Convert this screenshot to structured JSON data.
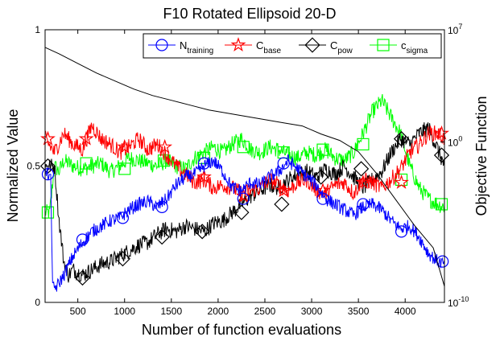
{
  "chart_data": {
    "type": "line",
    "title": "F10 Rotated Ellipsoid 20-D",
    "xlabel": "Number of function evaluations",
    "ylabel": "Normalized Value",
    "y2label": "Objective Function",
    "xlim": [
      150,
      4420
    ],
    "ylim": [
      0,
      1
    ],
    "y2lim_log10": [
      -10,
      7
    ],
    "x_ticks": [
      500,
      1000,
      1500,
      2000,
      2500,
      3000,
      3500,
      4000
    ],
    "x_tick_labels": [
      "500",
      "1000",
      "1500",
      "2000",
      "2500",
      "3000",
      "3500",
      "4000"
    ],
    "y_ticks": [
      0,
      0.5,
      1
    ],
    "y_tick_labels": [
      "0",
      "0.5",
      "1"
    ],
    "y2_tick_labels": [
      {
        "value": -10,
        "base": "10",
        "exp": "-10"
      },
      {
        "value": 0,
        "base": "10",
        "exp": "0"
      },
      {
        "value": 7,
        "base": "10",
        "exp": "7"
      }
    ],
    "legend_position": "top-right",
    "series": [
      {
        "name": "N_training",
        "legend_main": "N",
        "legend_sub": "training",
        "color": "#0000ff",
        "marker": "circle",
        "x": [
          150,
          200,
          210,
          230,
          280,
          350,
          450,
          550,
          650,
          750,
          850,
          950,
          1050,
          1150,
          1250,
          1350,
          1450,
          1550,
          1650,
          1750,
          1850,
          1950,
          2050,
          2150,
          2250,
          2350,
          2450,
          2550,
          2650,
          2750,
          2850,
          2950,
          3050,
          3150,
          3250,
          3350,
          3450,
          3550,
          3650,
          3750,
          3850,
          3950,
          4050,
          4150,
          4250,
          4350,
          4420
        ],
        "y": [
          0.47,
          0.47,
          0.47,
          0.05,
          0.06,
          0.1,
          0.17,
          0.22,
          0.26,
          0.28,
          0.3,
          0.31,
          0.34,
          0.36,
          0.37,
          0.35,
          0.38,
          0.43,
          0.46,
          0.47,
          0.5,
          0.52,
          0.48,
          0.42,
          0.41,
          0.44,
          0.43,
          0.46,
          0.48,
          0.52,
          0.49,
          0.46,
          0.43,
          0.38,
          0.36,
          0.34,
          0.32,
          0.35,
          0.36,
          0.34,
          0.3,
          0.27,
          0.28,
          0.24,
          0.18,
          0.15,
          0.14
        ],
        "markers_x": [
          180,
          550,
          980,
          1400,
          1850,
          2270,
          2700,
          3120,
          3550,
          3960,
          4400
        ],
        "markers_y": [
          0.47,
          0.23,
          0.31,
          0.35,
          0.51,
          0.38,
          0.51,
          0.38,
          0.36,
          0.26,
          0.15
        ]
      },
      {
        "name": "C_base",
        "legend_main": "C",
        "legend_sub": "base",
        "color": "#ff0000",
        "marker": "star",
        "x": [
          150,
          250,
          350,
          450,
          550,
          650,
          750,
          850,
          950,
          1050,
          1150,
          1250,
          1350,
          1450,
          1550,
          1650,
          1750,
          1850,
          1950,
          2050,
          2150,
          2250,
          2350,
          2450,
          2550,
          2650,
          2750,
          2850,
          2950,
          3050,
          3150,
          3250,
          3350,
          3450,
          3550,
          3650,
          3750,
          3850,
          3950,
          4050,
          4150,
          4250,
          4350,
          4420
        ],
        "y": [
          0.6,
          0.55,
          0.62,
          0.58,
          0.56,
          0.65,
          0.6,
          0.58,
          0.55,
          0.57,
          0.6,
          0.56,
          0.58,
          0.54,
          0.5,
          0.47,
          0.44,
          0.45,
          0.42,
          0.43,
          0.42,
          0.4,
          0.41,
          0.42,
          0.45,
          0.43,
          0.41,
          0.44,
          0.45,
          0.41,
          0.4,
          0.43,
          0.44,
          0.4,
          0.45,
          0.44,
          0.42,
          0.45,
          0.49,
          0.55,
          0.58,
          0.62,
          0.62,
          0.6
        ],
        "markers_x": [
          180,
          590,
          1000,
          1430,
          1850,
          2270,
          2700,
          3120,
          3550,
          3960,
          4390
        ],
        "markers_y": [
          0.6,
          0.6,
          0.57,
          0.57,
          0.46,
          0.39,
          0.41,
          0.41,
          0.44,
          0.44,
          0.62
        ]
      },
      {
        "name": "C_pow",
        "legend_main": "C",
        "legend_sub": "pow",
        "color": "#000000",
        "marker": "diamond",
        "x": [
          150,
          200,
          250,
          300,
          350,
          400,
          450,
          550,
          650,
          750,
          850,
          950,
          1050,
          1150,
          1250,
          1350,
          1450,
          1550,
          1650,
          1750,
          1850,
          1950,
          2050,
          2150,
          2250,
          2350,
          2450,
          2550,
          2650,
          2750,
          2850,
          2950,
          3050,
          3150,
          3250,
          3350,
          3450,
          3550,
          3650,
          3750,
          3850,
          3950,
          4050,
          4150,
          4250,
          4350,
          4420
        ],
        "y": [
          0.5,
          0.5,
          0.5,
          0.3,
          0.15,
          0.1,
          0.12,
          0.1,
          0.12,
          0.14,
          0.15,
          0.17,
          0.19,
          0.21,
          0.22,
          0.25,
          0.27,
          0.26,
          0.28,
          0.27,
          0.26,
          0.29,
          0.3,
          0.33,
          0.36,
          0.39,
          0.41,
          0.43,
          0.42,
          0.45,
          0.47,
          0.48,
          0.46,
          0.49,
          0.47,
          0.5,
          0.46,
          0.42,
          0.45,
          0.48,
          0.55,
          0.6,
          0.58,
          0.62,
          0.64,
          0.56,
          0.5
        ],
        "markers_x": [
          180,
          550,
          980,
          1400,
          1830,
          2250,
          2680,
          3100,
          3530,
          3960,
          4390
        ],
        "markers_y": [
          0.5,
          0.09,
          0.16,
          0.24,
          0.26,
          0.33,
          0.36,
          0.46,
          0.49,
          0.6,
          0.54
        ]
      },
      {
        "name": "c_sigma",
        "legend_main": "c",
        "legend_sub": "sigma",
        "color": "#00ff00",
        "marker": "square",
        "x": [
          150,
          200,
          250,
          300,
          350,
          450,
          550,
          650,
          750,
          850,
          950,
          1050,
          1150,
          1250,
          1350,
          1450,
          1550,
          1650,
          1750,
          1850,
          1950,
          2050,
          2150,
          2250,
          2350,
          2450,
          2550,
          2650,
          2750,
          2850,
          2950,
          3050,
          3150,
          3250,
          3350,
          3450,
          3550,
          3650,
          3750,
          3850,
          3950,
          4050,
          4150,
          4250,
          4350,
          4420
        ],
        "y": [
          0.33,
          0.33,
          0.5,
          0.48,
          0.52,
          0.5,
          0.49,
          0.5,
          0.51,
          0.48,
          0.5,
          0.53,
          0.52,
          0.51,
          0.5,
          0.52,
          0.5,
          0.49,
          0.53,
          0.55,
          0.57,
          0.55,
          0.58,
          0.6,
          0.56,
          0.55,
          0.57,
          0.56,
          0.54,
          0.53,
          0.55,
          0.54,
          0.56,
          0.53,
          0.52,
          0.55,
          0.62,
          0.7,
          0.74,
          0.68,
          0.62,
          0.5,
          0.42,
          0.38,
          0.36,
          0.35
        ],
        "markers_x": [
          180,
          590,
          1000,
          1420,
          1850,
          2270,
          2700,
          3120,
          3550,
          3960,
          4390
        ],
        "markers_y": [
          0.33,
          0.51,
          0.49,
          0.52,
          0.53,
          0.57,
          0.55,
          0.56,
          0.58,
          0.45,
          0.36
        ]
      },
      {
        "name": "Objective Function",
        "axis": "right",
        "color": "#000000",
        "marker": "none",
        "x": [
          150,
          300,
          500,
          700,
          900,
          1100,
          1300,
          1500,
          1700,
          1900,
          2100,
          2300,
          2500,
          2700,
          2900,
          3100,
          3300,
          3500,
          3700,
          3900,
          4100,
          4300,
          4420
        ],
        "y_log10": [
          5.9,
          5.5,
          4.9,
          4.3,
          3.8,
          3.3,
          2.9,
          2.6,
          2.3,
          2.0,
          1.8,
          1.6,
          1.4,
          1.2,
          1.0,
          0.5,
          0.1,
          -0.6,
          -2.0,
          -3.6,
          -5.2,
          -6.6,
          -9.0
        ]
      }
    ]
  }
}
